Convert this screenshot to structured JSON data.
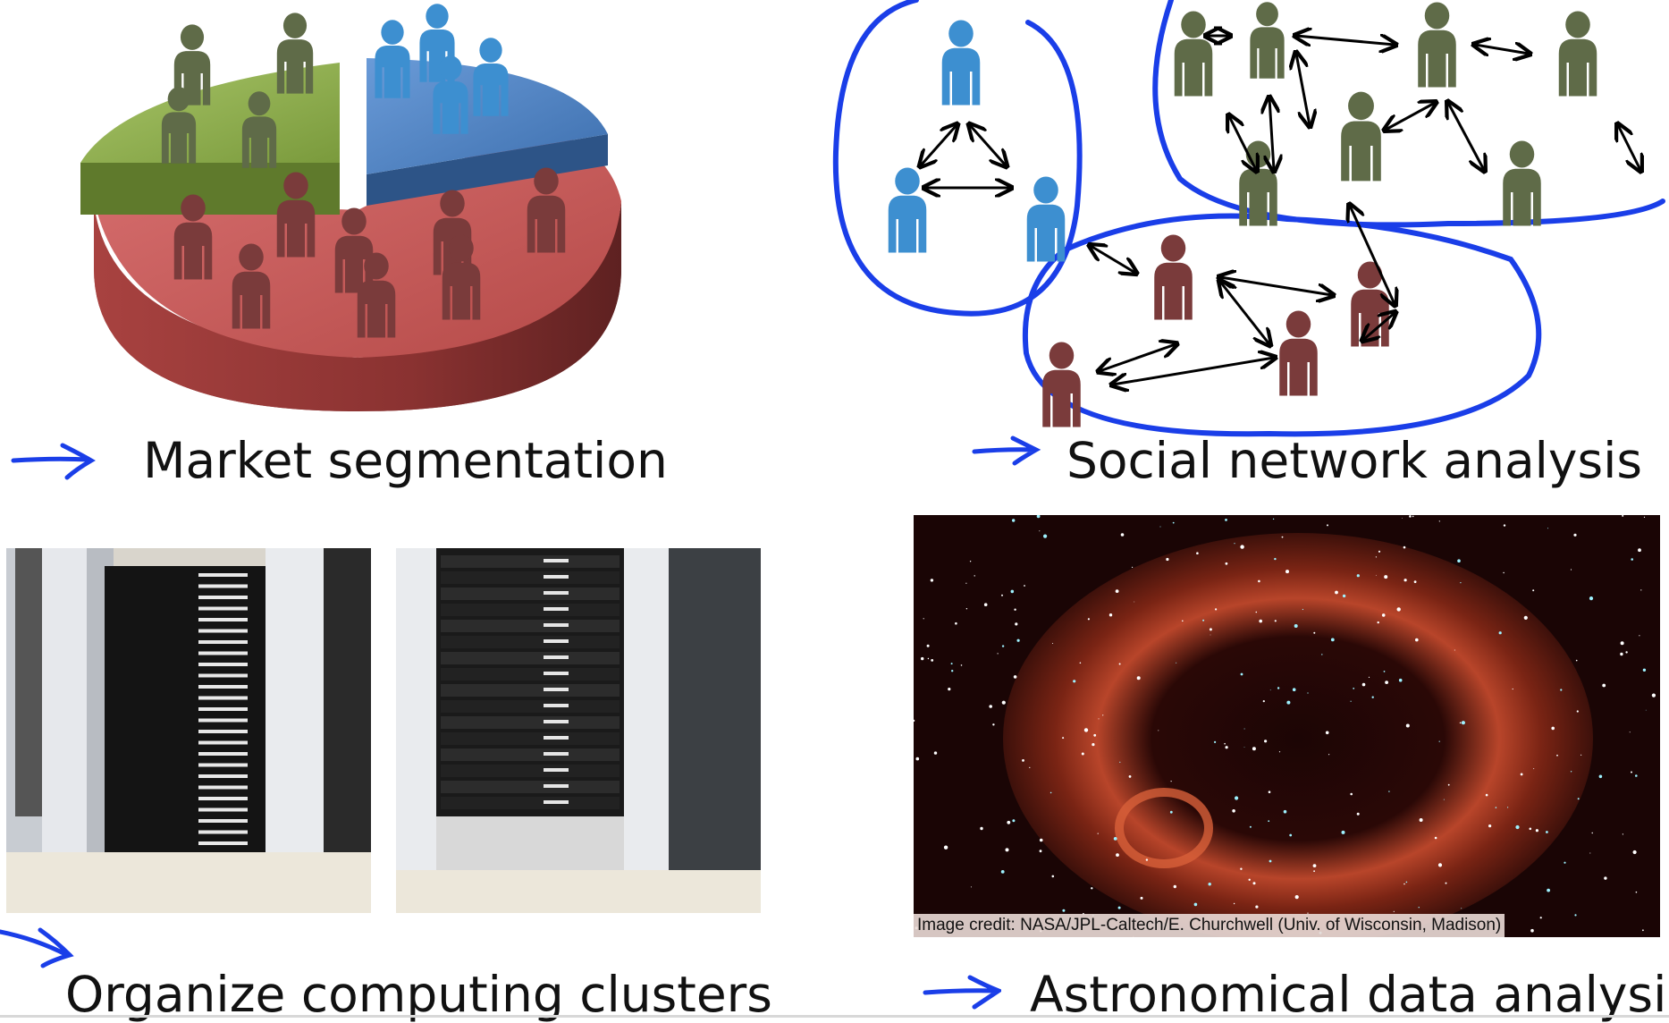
{
  "captions": {
    "market": "Market segmentation",
    "social": "Social network analysis",
    "clusters": "Organize computing clusters",
    "astro": "Astronomical data analysis"
  },
  "image_credit": "Image credit: NASA/JPL-Caltech/E. Churchwell (Univ. of Wisconsin, Madison)",
  "colors": {
    "ink_blue": "#1a3ee8",
    "pie_red": "#c85a58",
    "pie_green": "#8fb050",
    "pie_blue": "#4a7fc0",
    "person_green": "#5f6b48",
    "person_blue": "#3d8fd0",
    "person_red": "#7a3b3b"
  }
}
